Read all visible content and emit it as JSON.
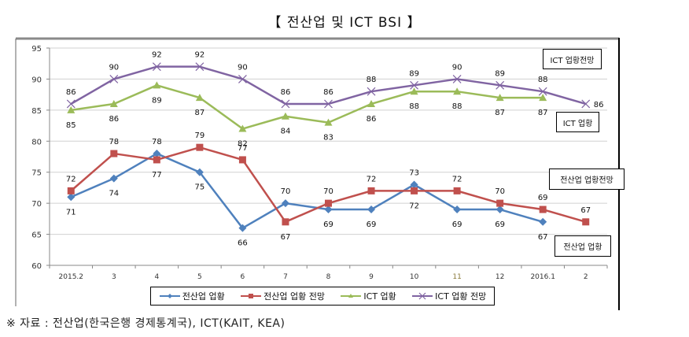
{
  "title": "【 전산업 및 ICT BSI 】",
  "source_note": "※ 자료 : 전산업(한국은행 경제통계국), ICT(KAIT, KEA)",
  "annotations": {
    "ict_outlook": "ICT 업황전망",
    "ict_status": "ICT 업황",
    "all_outlook": "전산업 업황전망",
    "all_status": "전산업 업황"
  },
  "chart_data": {
    "type": "line",
    "title": "【 전산업 및 ICT BSI 】",
    "xlabel": "",
    "ylabel": "",
    "ylim": [
      60,
      95
    ],
    "yticks": [
      60,
      65,
      70,
      75,
      80,
      85,
      90,
      95
    ],
    "grid": true,
    "legend_position": "bottom",
    "categories": [
      "2015.2",
      "3",
      "4",
      "5",
      "6",
      "7",
      "8",
      "9",
      "10",
      "11",
      "12",
      "2016.1",
      "2"
    ],
    "series": [
      {
        "name": "전산업 업황",
        "color": "#4f81bd",
        "marker": "diamond",
        "values": [
          71,
          74,
          78,
          75,
          66,
          70,
          69,
          69,
          73,
          69,
          69,
          67,
          null
        ]
      },
      {
        "name": "전산업 업황 전망",
        "color": "#c0504d",
        "marker": "square",
        "values": [
          72,
          78,
          77,
          79,
          77,
          67,
          70,
          72,
          72,
          72,
          70,
          69,
          67
        ]
      },
      {
        "name": "ICT 업황",
        "color": "#9bbb59",
        "marker": "triangle",
        "values": [
          85,
          86,
          89,
          87,
          82,
          84,
          83,
          86,
          88,
          88,
          87,
          87,
          null
        ]
      },
      {
        "name": "ICT 업황 전망",
        "color": "#8064a2",
        "marker": "x",
        "values": [
          86,
          90,
          92,
          92,
          90,
          86,
          86,
          88,
          89,
          90,
          89,
          88,
          86
        ]
      }
    ],
    "label_positions": [
      [
        "below",
        "below",
        "above",
        "below",
        "below",
        "above",
        "below",
        "below",
        "above",
        "below",
        "below",
        "below",
        null
      ],
      [
        "above",
        "above",
        "below",
        "above",
        "above",
        "below",
        "above",
        "above",
        "below",
        "above",
        "above",
        "above",
        "above"
      ],
      [
        "below",
        "below",
        "below",
        "below",
        "below",
        "below",
        "below",
        "below",
        "below",
        "below",
        "below",
        "below",
        null
      ],
      [
        "above",
        "above",
        "above",
        "above",
        "above",
        "above",
        "above",
        "above",
        "above",
        "above",
        "above",
        "above",
        "right"
      ]
    ]
  }
}
